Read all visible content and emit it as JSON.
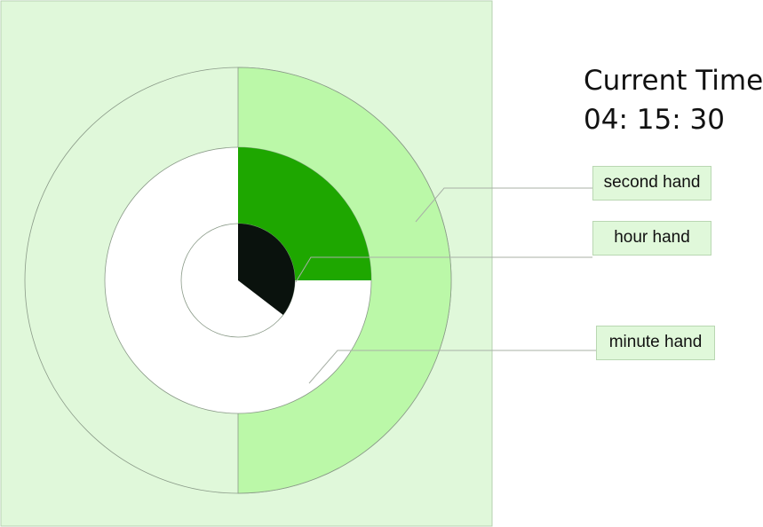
{
  "clock": {
    "time_title": "Current Time:",
    "time_value": "04: 15: 30",
    "hours": 4,
    "minutes": 15,
    "seconds": 30,
    "labels": {
      "second": "second hand",
      "hour": "hour hand",
      "minute": "minute hand"
    }
  },
  "colors": {
    "background_panel": "#e0f8da",
    "seconds_sector": "#bbf8a8",
    "minutes_sector": "#1ea700",
    "hours_sector": "#0a120d",
    "inner_face": "#ffffff",
    "outline": "#8a9a88",
    "leader_line": "#a8b0a6"
  }
}
